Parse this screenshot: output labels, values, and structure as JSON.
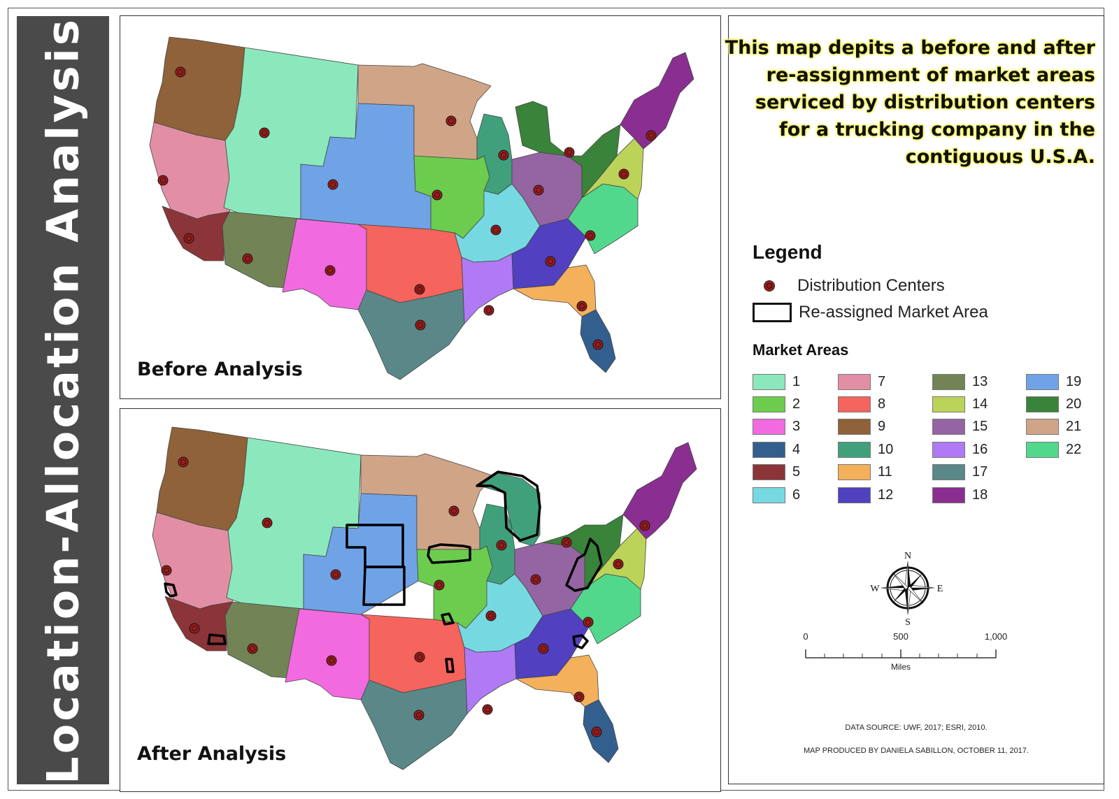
{
  "title": "Location-Allocation Analysis",
  "description_lines": [
    "This map depits a before and after",
    "re-assignment of market areas",
    "serviced by distribution centers",
    "for a trucking company in the",
    "contiguous U.S.A."
  ],
  "panels": {
    "before": {
      "label": "Before Analysis"
    },
    "after": {
      "label": "After Analysis"
    }
  },
  "legend": {
    "title": "Legend",
    "distribution_centers_label": "Distribution Centers",
    "reassigned_label": "Re-assigned Market Area",
    "market_areas_title": "Market Areas",
    "market_areas": [
      {
        "id": "1",
        "color": "#8be8bd"
      },
      {
        "id": "2",
        "color": "#6ccc4e"
      },
      {
        "id": "3",
        "color": "#f26ae0"
      },
      {
        "id": "4",
        "color": "#335f8f"
      },
      {
        "id": "5",
        "color": "#8b3538"
      },
      {
        "id": "6",
        "color": "#76d9e2"
      },
      {
        "id": "7",
        "color": "#e28fa5"
      },
      {
        "id": "8",
        "color": "#f5645d"
      },
      {
        "id": "9",
        "color": "#8f6239"
      },
      {
        "id": "10",
        "color": "#41a07c"
      },
      {
        "id": "11",
        "color": "#f5b05c"
      },
      {
        "id": "12",
        "color": "#5140c0"
      },
      {
        "id": "13",
        "color": "#728456"
      },
      {
        "id": "14",
        "color": "#bcd35a"
      },
      {
        "id": "15",
        "color": "#9564a3"
      },
      {
        "id": "16",
        "color": "#b07af5"
      },
      {
        "id": "17",
        "color": "#5a8888"
      },
      {
        "id": "18",
        "color": "#8a2e91"
      },
      {
        "id": "19",
        "color": "#6fa3e6"
      },
      {
        "id": "20",
        "color": "#3a833a"
      },
      {
        "id": "21",
        "color": "#d0a587"
      },
      {
        "id": "22",
        "color": "#52d88c"
      }
    ]
  },
  "compass": {
    "n": "N",
    "s": "S",
    "e": "E",
    "w": "W"
  },
  "scalebar": {
    "ticks": [
      "0",
      "500",
      "1,000"
    ],
    "units": "Miles"
  },
  "credits": {
    "source": "DATA SOURCE: UWF, 2017; ESRI, 2010.",
    "producer": "MAP PRODUCED BY DANIELA SABILLON, OCTOBER 11, 2017."
  },
  "colors": {
    "title_band": "#4a4a4a",
    "highlight": "#f5f56a",
    "dc_marker": "#9b1c1c"
  },
  "distribution_center_count": 22
}
